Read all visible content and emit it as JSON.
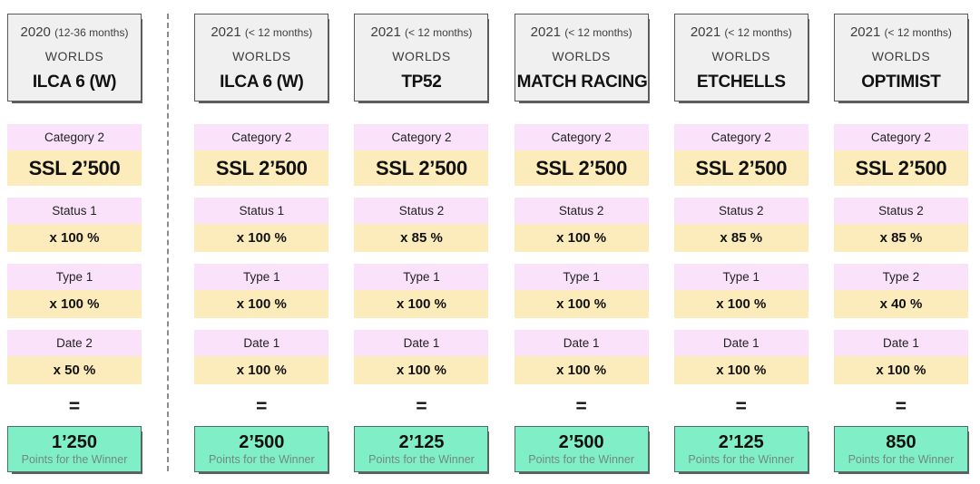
{
  "labels": {
    "equals": "=",
    "result_caption": "Points for the Winner"
  },
  "colors": {
    "header_bg": "#f0f0f0",
    "header_border": "#595959",
    "factor_label_bg": "#fbe2fb",
    "factor_value_bg": "#fdecbb",
    "result_bg": "#80eec6",
    "result_border": "#4d6e62",
    "result_caption_color": "#6f8a80",
    "divider_color": "#8c8c8c"
  },
  "columns": [
    {
      "year": "2020",
      "age": "(12-36 months)",
      "level": "WORLDS",
      "event": "ILCA 6 (W)",
      "rows": [
        {
          "label": "Category 2",
          "value": "SSL 2’500"
        },
        {
          "label": "Status 1",
          "value": "x 100 %"
        },
        {
          "label": "Type 1",
          "value": "x 100 %"
        },
        {
          "label": "Date 2",
          "value": "x 50 %"
        }
      ],
      "result": "1’250"
    },
    {
      "year": "2021",
      "age": "(< 12 months)",
      "level": "WORLDS",
      "event": "ILCA 6 (W)",
      "rows": [
        {
          "label": "Category 2",
          "value": "SSL 2’500"
        },
        {
          "label": "Status 1",
          "value": "x 100 %"
        },
        {
          "label": "Type 1",
          "value": "x 100 %"
        },
        {
          "label": "Date 1",
          "value": "x 100 %"
        }
      ],
      "result": "2’500"
    },
    {
      "year": "2021",
      "age": "(< 12 months)",
      "level": "WORLDS",
      "event": "TP52",
      "rows": [
        {
          "label": "Category 2",
          "value": "SSL 2’500"
        },
        {
          "label": "Status 2",
          "value": "x 85 %"
        },
        {
          "label": "Type 1",
          "value": "x 100 %"
        },
        {
          "label": "Date 1",
          "value": "x 100 %"
        }
      ],
      "result": "2’125"
    },
    {
      "year": "2021",
      "age": "(< 12 months)",
      "level": "WORLDS",
      "event": "MATCH RACING",
      "rows": [
        {
          "label": "Category 2",
          "value": "SSL 2’500"
        },
        {
          "label": "Status 2",
          "value": "x 100 %"
        },
        {
          "label": "Type 1",
          "value": "x 100 %"
        },
        {
          "label": "Date 1",
          "value": "x 100 %"
        }
      ],
      "result": "2’500"
    },
    {
      "year": "2021",
      "age": "(< 12 months)",
      "level": "WORLDS",
      "event": "ETCHELLS",
      "rows": [
        {
          "label": "Category 2",
          "value": "SSL 2’500"
        },
        {
          "label": "Status 2",
          "value": "x 85 %"
        },
        {
          "label": "Type 1",
          "value": "x 100 %"
        },
        {
          "label": "Date 1",
          "value": "x 100 %"
        }
      ],
      "result": "2’125"
    },
    {
      "year": "2021",
      "age": "(< 12 months)",
      "level": "WORLDS",
      "event": "OPTIMIST",
      "rows": [
        {
          "label": "Category 2",
          "value": "SSL 2’500"
        },
        {
          "label": "Status 2",
          "value": "x 85 %"
        },
        {
          "label": "Type 2",
          "value": "x 40 %"
        },
        {
          "label": "Date 1",
          "value": "x 100 %"
        }
      ],
      "result": "850"
    }
  ]
}
